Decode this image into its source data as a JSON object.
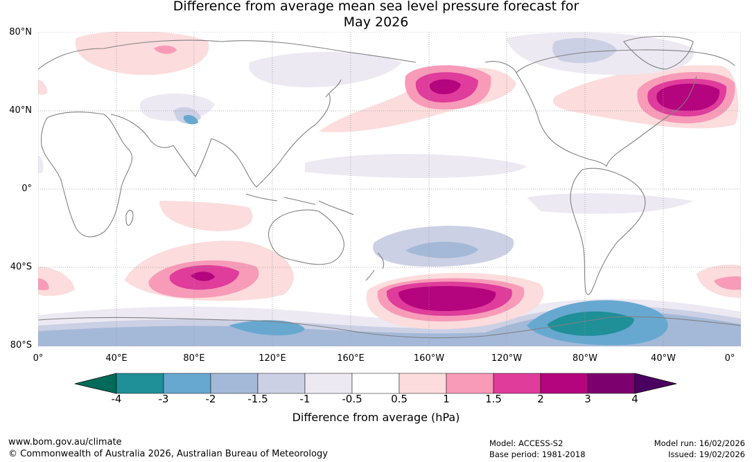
{
  "title": {
    "line1": "Difference from average mean sea level pressure forecast for",
    "line2": "May 2026"
  },
  "map": {
    "lat_labels": [
      "80°N",
      "40°N",
      "0°",
      "40°S",
      "80°S"
    ],
    "lon_labels": [
      "0°",
      "40°E",
      "80°E",
      "120°E",
      "160°E",
      "160°W",
      "120°W",
      "80°W",
      "40°W",
      "0°"
    ],
    "colors": {
      "ocean": "#ffffff",
      "land_outline": "#808080",
      "grid": "#999999"
    }
  },
  "colorbar": {
    "ticks": [
      "-4",
      "-3",
      "-2",
      "-1.5",
      "-1",
      "-0.5",
      "0.5",
      "1",
      "1.5",
      "2",
      "3",
      "4"
    ],
    "colors": [
      "#006b5a",
      "#1f8f98",
      "#67a8d0",
      "#a4b9d8",
      "#ccd0e4",
      "#ece9f3",
      "#ffffff",
      "#fcdcdc",
      "#f79bb8",
      "#df3c9b",
      "#b4047e",
      "#7c006d",
      "#4a0060"
    ],
    "label": "Difference from average (hPa)"
  },
  "footer": {
    "website": "www.bom.gov.au/climate",
    "copyright": "© Commonwealth of Australia 2026, Australian Bureau of Meteorology",
    "model": "Model: ACCESS-S2",
    "base_period": "Base period: 1981-2018",
    "model_run": "Model run: 16/02/2026",
    "issued": "Issued: 19/02/2026"
  }
}
